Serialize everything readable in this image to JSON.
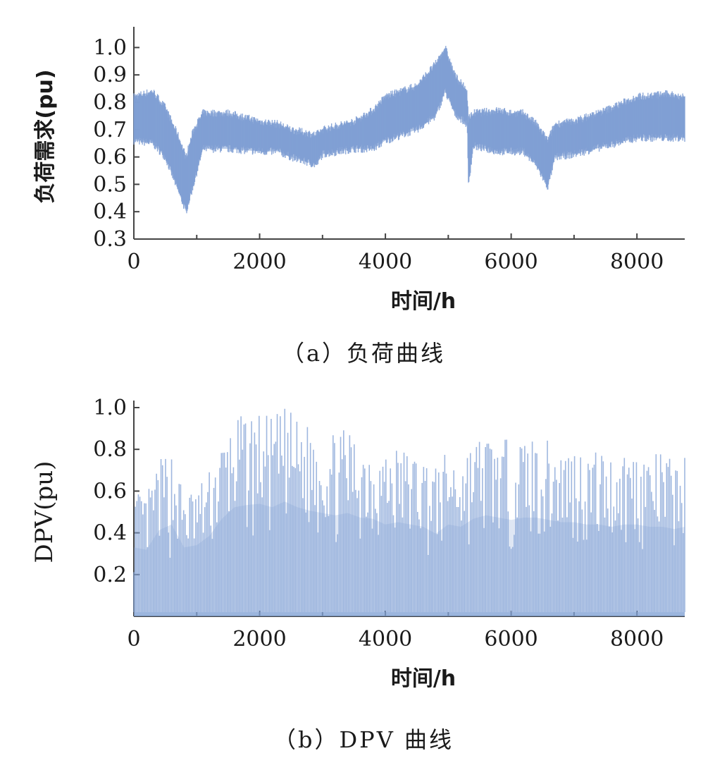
{
  "colors": {
    "series": "#7f9fd4",
    "axis": "#444444",
    "text": "#1a1a1a"
  },
  "chart_data": [
    {
      "type": "area",
      "caption": "（a）负荷曲线",
      "title": "",
      "xlabel": "时间/h",
      "ylabel": "负荷需求(pu)",
      "xlim": [
        0,
        8760
      ],
      "ylim": [
        0.3,
        1.05
      ],
      "xticks": [
        0,
        2000,
        4000,
        6000,
        8000
      ],
      "xtick_labels": [
        "0",
        "2000",
        "4000",
        "6000",
        "8000"
      ],
      "yticks": [
        0.3,
        0.4,
        0.5,
        0.6,
        0.7,
        0.8,
        0.9,
        1.0
      ],
      "ytick_labels": [
        "0.3",
        "0.4",
        "0.5",
        "0.6",
        "0.7",
        "0.8",
        "0.9",
        "1.0"
      ],
      "grid": false,
      "series": [
        {
          "lower": [
            [
              0,
              0.66
            ],
            [
              300,
              0.65
            ],
            [
              500,
              0.6
            ],
            [
              700,
              0.48
            ],
            [
              830,
              0.4
            ],
            [
              950,
              0.5
            ],
            [
              1100,
              0.63
            ],
            [
              1500,
              0.63
            ],
            [
              2000,
              0.62
            ],
            [
              2300,
              0.62
            ],
            [
              2500,
              0.6
            ],
            [
              2900,
              0.57
            ],
            [
              3000,
              0.61
            ],
            [
              3500,
              0.63
            ],
            [
              3800,
              0.63
            ],
            [
              4000,
              0.66
            ],
            [
              4500,
              0.7
            ],
            [
              4800,
              0.75
            ],
            [
              4950,
              0.84
            ],
            [
              5100,
              0.76
            ],
            [
              5300,
              0.72
            ],
            [
              5320,
              0.5
            ],
            [
              5400,
              0.64
            ],
            [
              5800,
              0.62
            ],
            [
              6000,
              0.62
            ],
            [
              6200,
              0.62
            ],
            [
              6400,
              0.57
            ],
            [
              6580,
              0.49
            ],
            [
              6700,
              0.6
            ],
            [
              7000,
              0.61
            ],
            [
              7500,
              0.64
            ],
            [
              8000,
              0.67
            ],
            [
              8500,
              0.67
            ],
            [
              8760,
              0.67
            ]
          ],
          "upper": [
            [
              0,
              0.82
            ],
            [
              300,
              0.84
            ],
            [
              500,
              0.78
            ],
            [
              700,
              0.68
            ],
            [
              830,
              0.6
            ],
            [
              950,
              0.7
            ],
            [
              1100,
              0.76
            ],
            [
              1500,
              0.76
            ],
            [
              2000,
              0.73
            ],
            [
              2300,
              0.72
            ],
            [
              2500,
              0.7
            ],
            [
              2900,
              0.68
            ],
            [
              3000,
              0.7
            ],
            [
              3500,
              0.73
            ],
            [
              3800,
              0.77
            ],
            [
              4000,
              0.82
            ],
            [
              4500,
              0.86
            ],
            [
              4800,
              0.94
            ],
            [
              4950,
              1.0
            ],
            [
              5100,
              0.9
            ],
            [
              5300,
              0.84
            ],
            [
              5320,
              0.74
            ],
            [
              5400,
              0.76
            ],
            [
              5800,
              0.77
            ],
            [
              6000,
              0.76
            ],
            [
              6200,
              0.76
            ],
            [
              6400,
              0.72
            ],
            [
              6580,
              0.66
            ],
            [
              6700,
              0.72
            ],
            [
              7000,
              0.73
            ],
            [
              7500,
              0.77
            ],
            [
              8000,
              0.82
            ],
            [
              8500,
              0.83
            ],
            [
              8760,
              0.82
            ]
          ]
        }
      ]
    },
    {
      "type": "area",
      "caption": "（b）DPV 曲线",
      "title": "",
      "xlabel": "时间/h",
      "ylabel": "DPV(pu)",
      "xlim": [
        0,
        8760
      ],
      "ylim": [
        0,
        1.0
      ],
      "xticks": [
        0,
        2000,
        4000,
        6000,
        8000
      ],
      "xtick_labels": [
        "0",
        "2000",
        "4000",
        "6000",
        "8000"
      ],
      "yticks": [
        0.2,
        0.4,
        0.6,
        0.8,
        1.0
      ],
      "ytick_labels": [
        "0.2",
        "0.4",
        "0.6",
        "0.8",
        "1.0"
      ],
      "grid": false,
      "series": [
        {
          "baseline": 0.02,
          "daily_peaks": [
            [
              0,
              0.6
            ],
            [
              200,
              0.58
            ],
            [
              400,
              0.75
            ],
            [
              600,
              0.8
            ],
            [
              800,
              0.6
            ],
            [
              1000,
              0.62
            ],
            [
              1200,
              0.7
            ],
            [
              1400,
              0.85
            ],
            [
              1600,
              0.95
            ],
            [
              1800,
              0.97
            ],
            [
              2000,
              0.98
            ],
            [
              2200,
              0.95
            ],
            [
              2400,
              1.0
            ],
            [
              2600,
              0.95
            ],
            [
              2800,
              0.92
            ],
            [
              3000,
              0.9
            ],
            [
              3200,
              0.88
            ],
            [
              3400,
              0.9
            ],
            [
              3600,
              0.86
            ],
            [
              3800,
              0.85
            ],
            [
              4000,
              0.8
            ],
            [
              4200,
              0.82
            ],
            [
              4400,
              0.8
            ],
            [
              4600,
              0.78
            ],
            [
              4800,
              0.72
            ],
            [
              5000,
              0.8
            ],
            [
              5200,
              0.78
            ],
            [
              5400,
              0.85
            ],
            [
              5600,
              0.88
            ],
            [
              5800,
              0.86
            ],
            [
              6000,
              0.84
            ],
            [
              6200,
              0.86
            ],
            [
              6400,
              0.86
            ],
            [
              6600,
              0.84
            ],
            [
              6800,
              0.82
            ],
            [
              7000,
              0.82
            ],
            [
              7200,
              0.8
            ],
            [
              7400,
              0.8
            ],
            [
              7600,
              0.78
            ],
            [
              7800,
              0.8
            ],
            [
              8000,
              0.8
            ],
            [
              8200,
              0.78
            ],
            [
              8400,
              0.78
            ],
            [
              8600,
              0.76
            ],
            [
              8760,
              0.78
            ]
          ]
        }
      ]
    }
  ]
}
